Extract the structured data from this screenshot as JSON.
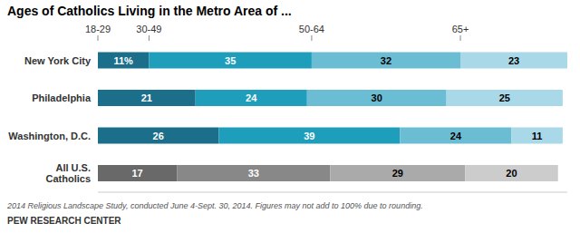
{
  "chart_data": {
    "type": "bar",
    "title": "Ages of Catholics Living in the Metro Area of ...",
    "orientation": "horizontal",
    "stacked": true,
    "data_labels": true,
    "tick_labels": "y",
    "categories": [
      "New York City",
      "Philadelphia",
      "Washington, D.C.",
      "All U.S.\nCatholics"
    ],
    "series": [
      {
        "name": "18-29",
        "colors": [
          "#1b6f8a",
          "#1b6f8a",
          "#1b6f8a",
          "#696969"
        ],
        "values": [
          11,
          21,
          26,
          17
        ],
        "value_labels": [
          "11%",
          "21",
          "26",
          "17"
        ]
      },
      {
        "name": "30-49",
        "colors": [
          "#1e9ebb",
          "#1e9ebb",
          "#1e9ebb",
          "#888888"
        ],
        "values": [
          35,
          24,
          39,
          33
        ]
      },
      {
        "name": "50-64",
        "colors": [
          "#6bbdd4",
          "#6bbdd4",
          "#6bbdd4",
          "#aaaaaa"
        ],
        "values": [
          32,
          30,
          24,
          29
        ]
      },
      {
        "name": "65+",
        "colors": [
          "#a9d8e8",
          "#a9d8e8",
          "#a9d8e8",
          "#cccccc"
        ],
        "values": [
          23,
          25,
          11,
          20
        ]
      }
    ],
    "xlim": [
      0,
      101
    ],
    "annotations": [
      "2014 Religious Landscape Study, conducted June 4-Sept. 30, 2014. Figures may not add to 100% due to rounding.",
      "PEW RESEARCH CENTER"
    ]
  }
}
